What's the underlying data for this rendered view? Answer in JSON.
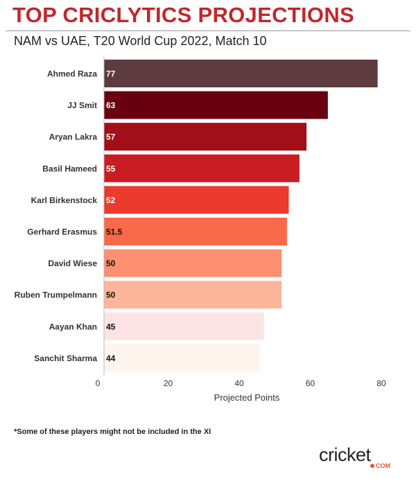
{
  "header": {
    "title": "TOP CRICLYTICS PROJECTIONS",
    "subtitle": "NAM vs UAE, T20 World Cup 2022, Match 10"
  },
  "footnote": "*Some of these players might not be included in the XI",
  "logo": {
    "main": "cricket",
    "suffix": "COM"
  },
  "chart_data": {
    "type": "bar",
    "orientation": "horizontal",
    "categories": [
      "Ahmed Raza",
      "JJ Smit",
      "Aryan Lakra",
      "Basil Hameed",
      "Karl Birkenstock",
      "Gerhard Erasmus",
      "David Wiese",
      "Ruben Trumpelmann",
      "Aayan Khan",
      "Sanchit Sharma"
    ],
    "values": [
      77,
      63,
      57,
      55,
      52,
      51.5,
      50,
      50,
      45,
      44
    ],
    "value_labels": [
      "77",
      "63",
      "57",
      "55",
      "52",
      "51.5",
      "50",
      "50",
      "45",
      "44"
    ],
    "bar_colors": [
      "#5e3b3e",
      "#690010",
      "#a30f18",
      "#c91d22",
      "#ea3b2e",
      "#f8694a",
      "#fc9070",
      "#fdb69a",
      "#fde4e4",
      "#fff4ee"
    ],
    "xlabel": "Projected Points",
    "xticks": [
      0,
      20,
      40,
      60,
      80
    ],
    "xlim": [
      0,
      80
    ]
  }
}
